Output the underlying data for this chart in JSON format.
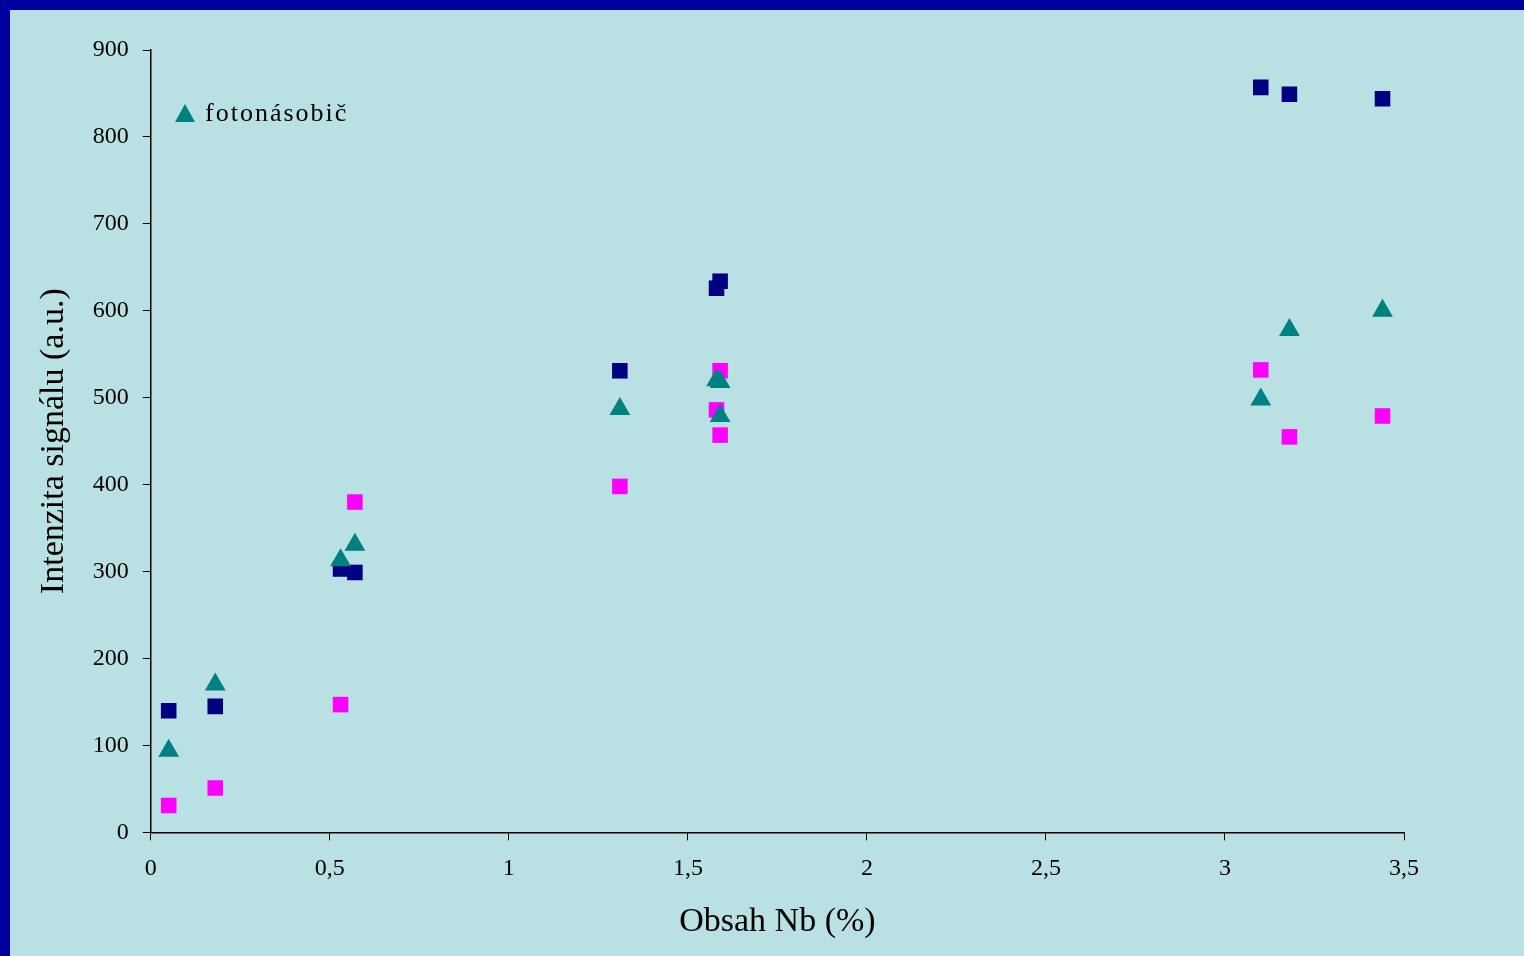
{
  "chart_data": {
    "type": "scatter",
    "xlabel": "Obsah Nb (%)",
    "ylabel": "Intenzita signálu (a.u.)",
    "xlim": [
      0,
      3.5
    ],
    "xticks": [
      0,
      {
        "value": 0.5,
        "label": "0,5"
      },
      1,
      {
        "value": 1.5,
        "label": "1,5"
      },
      2,
      {
        "value": 2.5,
        "label": "2,5"
      },
      3,
      {
        "value": 3.5,
        "label": "3,5"
      }
    ],
    "ylim": [
      0,
      900
    ],
    "yticks": [
      0,
      100,
      200,
      300,
      400,
      500,
      600,
      700,
      800,
      900
    ],
    "grid": false,
    "legend": "top left",
    "series": [
      {
        "color": "#000080",
        "marker": "square",
        "x": [
          0.05,
          0.18,
          0.53,
          0.57,
          1.31,
          1.58,
          1.59,
          3.1,
          3.18,
          3.44
        ],
        "values": [
          140,
          145,
          303,
          299,
          531,
          626,
          634,
          857,
          849,
          844
        ]
      },
      {
        "color": "#ff00ff",
        "marker": "square",
        "x": [
          0.05,
          0.18,
          0.53,
          0.57,
          1.31,
          1.58,
          1.59,
          1.59,
          3.1,
          3.18,
          3.44
        ],
        "values": [
          31,
          51,
          147,
          380,
          398,
          486,
          531,
          457,
          532,
          455,
          479
        ]
      },
      {
        "name": "fotonásobič",
        "color": "#008080",
        "marker": "triangle",
        "x": [
          0.05,
          0.18,
          0.53,
          0.57,
          1.31,
          1.58,
          1.59,
          1.59,
          3.1,
          3.18,
          3.44
        ],
        "values": [
          94,
          170,
          313,
          331,
          487,
          520,
          518,
          479,
          498,
          578,
          600
        ]
      }
    ]
  }
}
